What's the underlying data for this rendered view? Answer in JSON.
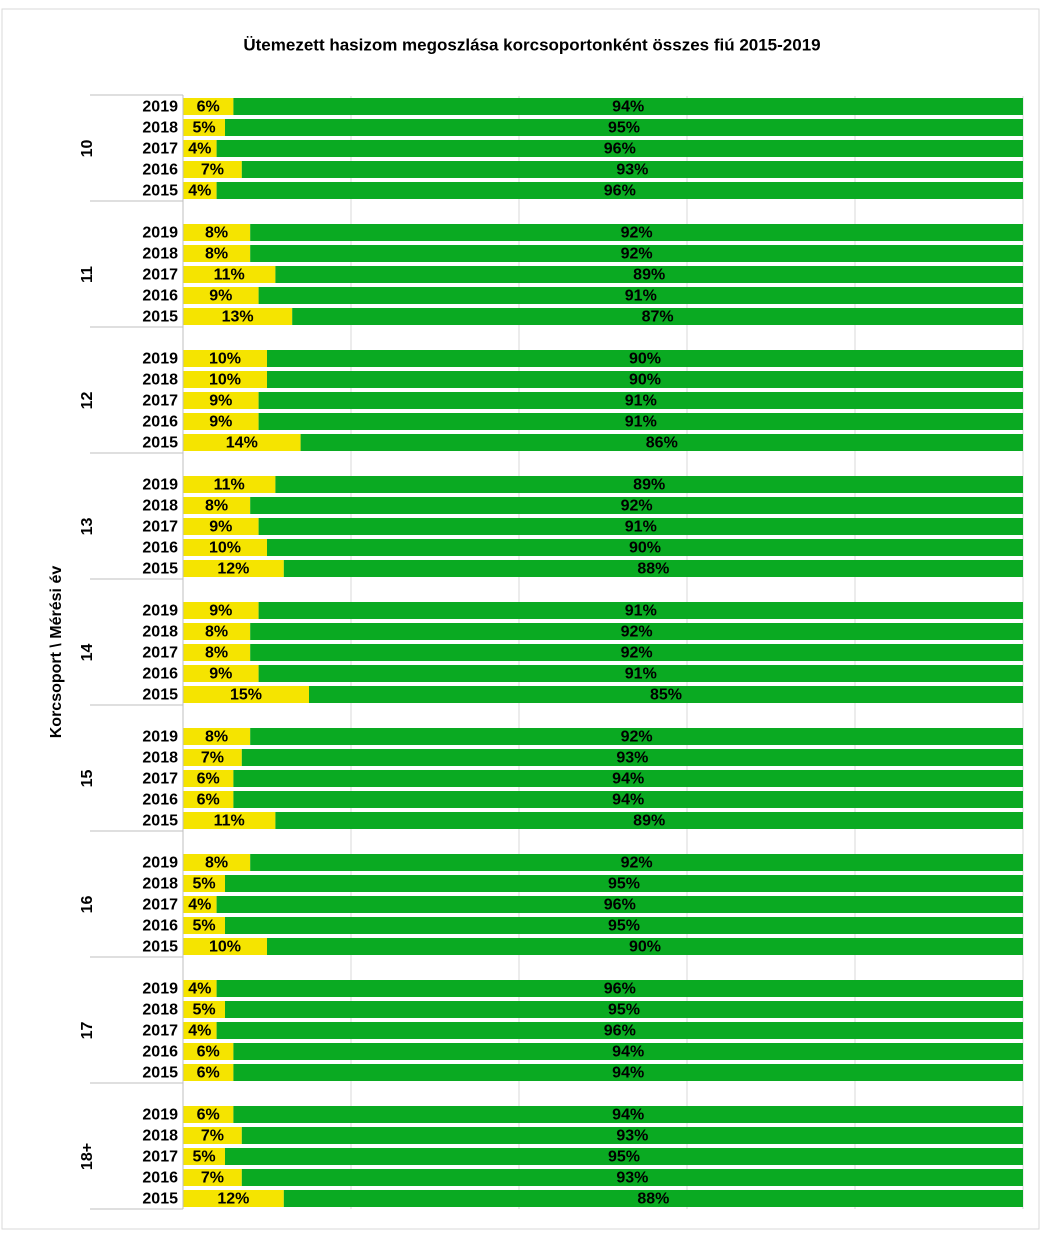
{
  "chart_data": {
    "type": "stacked_bar_horizontal",
    "title": "Ütemezett hasizom megoszlása korcsoportonként összes fiú 2015-2019",
    "y_label": "Korcsoport \\ Mérési év",
    "group_labels": [
      "10",
      "11",
      "12",
      "13",
      "14",
      "15",
      "16",
      "17",
      "18+"
    ],
    "categories": [
      "2019",
      "2018",
      "2017",
      "2016",
      "2015",
      "2019",
      "2018",
      "2017",
      "2016",
      "2015",
      "2019",
      "2018",
      "2017",
      "2016",
      "2015",
      "2019",
      "2018",
      "2017",
      "2016",
      "2015",
      "2019",
      "2018",
      "2017",
      "2016",
      "2015",
      "2019",
      "2018",
      "2017",
      "2016",
      "2015",
      "2019",
      "2018",
      "2017",
      "2016",
      "2015",
      "2019",
      "2018",
      "2017",
      "2016",
      "2015",
      "2019",
      "2018",
      "2017",
      "2016",
      "2015"
    ],
    "series": [
      {
        "color": "#f5e400",
        "values": [
          6,
          5,
          4,
          7,
          4,
          8,
          8,
          11,
          9,
          13,
          10,
          10,
          9,
          9,
          14,
          11,
          8,
          9,
          10,
          12,
          9,
          8,
          8,
          9,
          15,
          8,
          7,
          6,
          6,
          11,
          8,
          5,
          4,
          5,
          10,
          4,
          5,
          4,
          6,
          6,
          6,
          7,
          5,
          7,
          12
        ],
        "value_labels": [
          "6%",
          "5%",
          "4%",
          "7%",
          "4%",
          "8%",
          "8%",
          "11%",
          "9%",
          "13%",
          "10%",
          "10%",
          "9%",
          "9%",
          "14%",
          "11%",
          "8%",
          "9%",
          "10%",
          "12%",
          "9%",
          "8%",
          "8%",
          "9%",
          "15%",
          "8%",
          "7%",
          "6%",
          "6%",
          "11%",
          "8%",
          "5%",
          "4%",
          "5%",
          "10%",
          "4%",
          "5%",
          "4%",
          "6%",
          "6%",
          "6%",
          "7%",
          "5%",
          "7%",
          "12%"
        ]
      },
      {
        "color": "#0aaa22",
        "values": [
          94,
          95,
          96,
          93,
          96,
          92,
          92,
          89,
          91,
          87,
          90,
          90,
          91,
          91,
          86,
          89,
          92,
          91,
          90,
          88,
          91,
          92,
          92,
          91,
          85,
          92,
          93,
          94,
          94,
          89,
          92,
          95,
          96,
          95,
          90,
          96,
          95,
          96,
          94,
          94,
          94,
          93,
          95,
          93,
          88
        ],
        "value_labels": [
          "94%",
          "95%",
          "96%",
          "93%",
          "96%",
          "92%",
          "92%",
          "89%",
          "91%",
          "87%",
          "90%",
          "90%",
          "91%",
          "91%",
          "86%",
          "89%",
          "92%",
          "91%",
          "90%",
          "88%",
          "91%",
          "92%",
          "92%",
          "91%",
          "85%",
          "92%",
          "93%",
          "94%",
          "94%",
          "89%",
          "92%",
          "95%",
          "96%",
          "95%",
          "90%",
          "96%",
          "95%",
          "96%",
          "94%",
          "94%",
          "94%",
          "93%",
          "95%",
          "93%",
          "88%"
        ]
      }
    ],
    "xlim": [
      0,
      100
    ],
    "xticks": [
      0,
      20,
      40,
      60,
      80,
      100
    ],
    "grid": true
  }
}
